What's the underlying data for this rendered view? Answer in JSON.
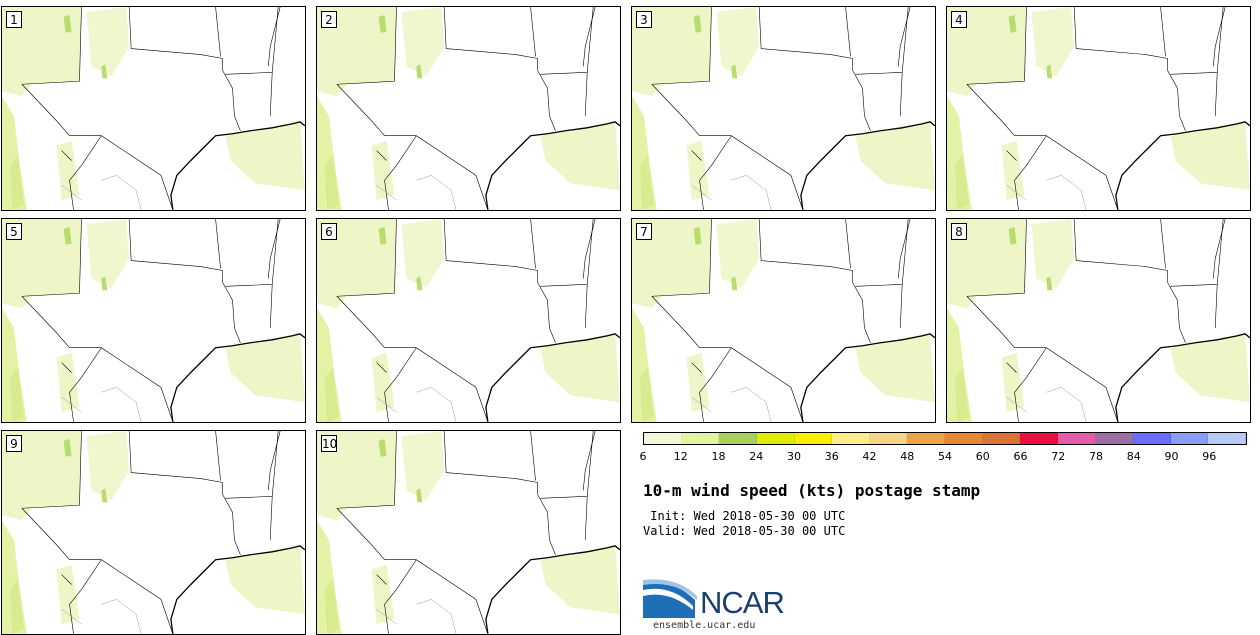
{
  "panels": [
    "1",
    "2",
    "3",
    "4",
    "5",
    "6",
    "7",
    "8",
    "9",
    "10"
  ],
  "colorbar": {
    "colors": [
      "#f3f8d8",
      "#e2f3a2",
      "#a9cf5d",
      "#dfed00",
      "#f8ef00",
      "#fbec8c",
      "#f5d58a",
      "#eea24c",
      "#e58836",
      "#da7337",
      "#eb0f41",
      "#e15da7",
      "#9c6ea6",
      "#6b6ef4",
      "#899df6",
      "#b7c9f5"
    ],
    "ticks": [
      "6",
      "12",
      "18",
      "24",
      "30",
      "36",
      "42",
      "48",
      "54",
      "60",
      "66",
      "72",
      "78",
      "84",
      "90",
      "96"
    ]
  },
  "title": "10-m wind speed (kts) postage stamp",
  "init": " Init: Wed 2018-05-30 00 UTC",
  "valid": "Valid: Wed 2018-05-30 00 UTC",
  "logo_text": "NCAR",
  "url": "ensemble.ucar.edu"
}
